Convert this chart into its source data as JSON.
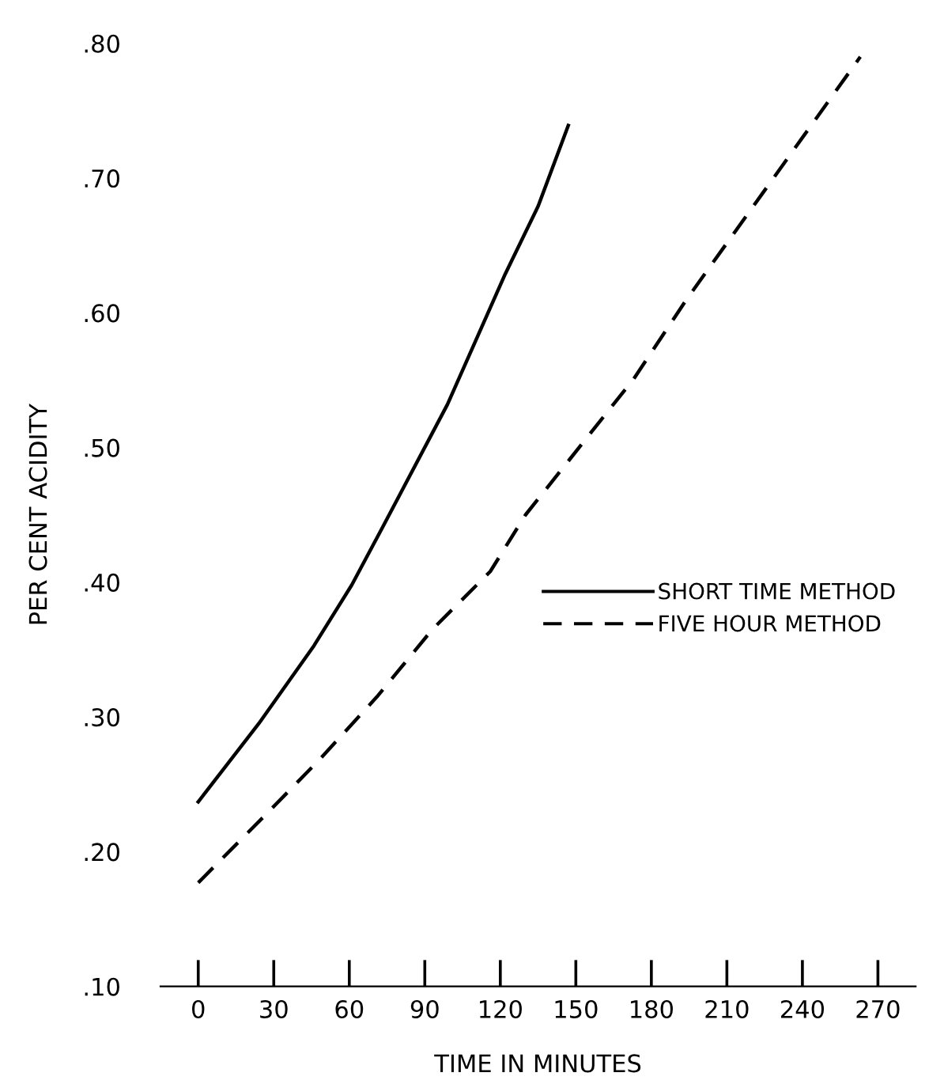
{
  "chart_data": {
    "type": "line",
    "xlabel": "TIME IN MINUTES",
    "ylabel": "PER CENT ACIDITY",
    "xlim": [
      -15,
      285
    ],
    "ylim": [
      0.1,
      0.8
    ],
    "xticks": [
      0,
      30,
      60,
      90,
      120,
      150,
      180,
      210,
      240,
      270
    ],
    "yticks": [
      {
        "value": 0.1,
        "label": ".10"
      },
      {
        "value": 0.2,
        "label": ".20"
      },
      {
        "value": 0.3,
        "label": ".30"
      },
      {
        "value": 0.4,
        "label": ".40"
      },
      {
        "value": 0.5,
        "label": ".50"
      },
      {
        "value": 0.6,
        "label": ".60"
      },
      {
        "value": 0.7,
        "label": ".70"
      },
      {
        "value": 0.8,
        "label": ".80"
      }
    ],
    "grid": false,
    "legend": "right",
    "marker": "none",
    "series": [
      {
        "name": "SHORT TIME METHOD",
        "color": "#000000",
        "line_style": "solid",
        "x": [
          0,
          24,
          46,
          61,
          73,
          99,
          122,
          135,
          147
        ],
        "values": [
          0.237,
          0.295,
          0.353,
          0.398,
          0.44,
          0.532,
          0.629,
          0.679,
          0.739
        ]
      },
      {
        "name": "FIVE HOUR METHOD",
        "color": "#000000",
        "line_style": "dashed",
        "x": [
          0,
          26,
          48,
          71,
          93,
          116,
          130,
          173,
          194,
          263
        ],
        "values": [
          0.177,
          0.226,
          0.268,
          0.315,
          0.365,
          0.408,
          0.45,
          0.551,
          0.61,
          0.79
        ]
      }
    ]
  }
}
